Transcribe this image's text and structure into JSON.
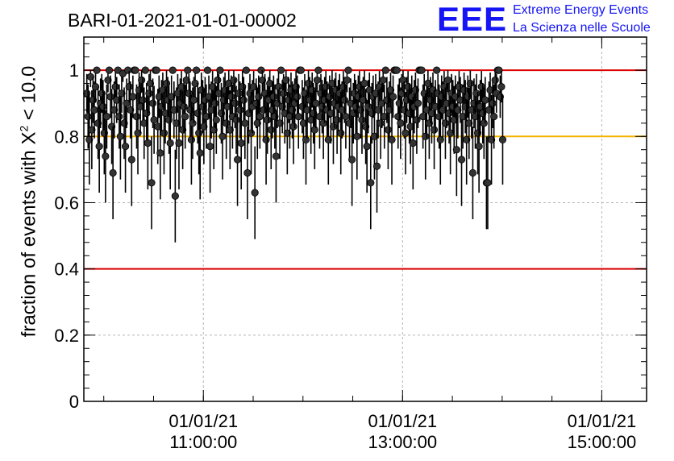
{
  "header": {
    "run_id": "BARI-01-2021-01-01-00002"
  },
  "logo": {
    "mark": "EEE",
    "line1": "Extreme Energy Events",
    "line2": "La Scienza nelle Scuole",
    "color": "#1515f5"
  },
  "chart_data": {
    "type": "scatter",
    "title": "BARI-01-2021-01-01-00002",
    "ylabel_prefix": "fraction of events with ",
    "ylabel_chi": "Χ",
    "ylabel_exp": "2",
    "ylabel_suffix": " < 10.0",
    "xlabel": "",
    "x_unit": "hours",
    "xlim": [
      9.8,
      15.45
    ],
    "ylim": [
      0,
      1.1
    ],
    "yticks": [
      0,
      0.2,
      0.4,
      0.6,
      0.8,
      1
    ],
    "ytick_labels": [
      "0",
      "0.2",
      "0.4",
      "0.6",
      "0.8",
      "1"
    ],
    "x_major_ticks": [
      {
        "x": 11,
        "date": "01/01/21",
        "time": "11:00:00"
      },
      {
        "x": 13,
        "date": "01/01/21",
        "time": "13:00:00"
      },
      {
        "x": 15,
        "date": "01/01/21",
        "time": "15:00:00"
      }
    ],
    "x_minor_step": 0.5,
    "grid": true,
    "reference_lines": [
      {
        "y": 1.0,
        "color": "#dd0000"
      },
      {
        "y": 0.8,
        "color": "#f2b400"
      },
      {
        "y": 0.4,
        "color": "#dd0000"
      }
    ],
    "series": [
      {
        "marker_color": "#333333",
        "x_start": 9.83,
        "x_step": 0.0125,
        "y": [
          0.93,
          0.86,
          0.79,
          0.98,
          0.82,
          0.91,
          0.88,
          0.95,
          1.0,
          0.84,
          0.77,
          0.9,
          0.93,
          0.89,
          0.81,
          0.74,
          0.86,
          0.97,
          1.0,
          0.92,
          0.83,
          0.69,
          0.88,
          0.95,
          0.91,
          1.0,
          0.86,
          0.8,
          0.93,
          0.99,
          0.84,
          0.77,
          0.9,
          1.0,
          0.95,
          0.88,
          0.73,
          0.92,
          1.0,
          1.0,
          0.86,
          0.81,
          0.94,
          0.89,
          0.97,
          0.91,
          0.84,
          1.0,
          0.87,
          0.78,
          0.93,
          0.96,
          0.66,
          0.9,
          0.85,
          1.0,
          1.0,
          0.83,
          0.92,
          0.75,
          0.89,
          0.94,
          0.81,
          0.87,
          0.96,
          0.91,
          0.85,
          0.78,
          0.92,
          1.0,
          0.88,
          0.62,
          0.84,
          0.93,
          0.78,
          0.9,
          0.95,
          0.82,
          0.89,
          0.86,
          0.97,
          1.0,
          0.93,
          0.88,
          0.79,
          0.84,
          0.91,
          0.96,
          1.0,
          0.87,
          0.81,
          0.75,
          0.94,
          0.89,
          0.83,
          0.91,
          0.86,
          1.0,
          0.92,
          0.77,
          0.88,
          0.95,
          0.82,
          0.9,
          0.85,
          0.97,
          0.93,
          1.0,
          0.87,
          0.8,
          0.91,
          0.94,
          0.84,
          0.89,
          0.96,
          0.82,
          0.92,
          0.86,
          0.97,
          0.9,
          0.85,
          0.73,
          0.93,
          0.88,
          0.78,
          0.95,
          0.91,
          0.84,
          1.0,
          0.69,
          0.87,
          0.93,
          0.81,
          0.89,
          0.95,
          0.63,
          0.9,
          0.84,
          0.92,
          0.86,
          1.0,
          0.97,
          0.88,
          0.93,
          0.79,
          0.85,
          0.91,
          0.96,
          0.82,
          0.88,
          0.92,
          0.86,
          0.74,
          0.9,
          0.95,
          0.84,
          1.0,
          0.89,
          0.93,
          0.87,
          0.97,
          0.81,
          0.91,
          0.86,
          0.94,
          0.88,
          0.83,
          0.9,
          0.95,
          0.92,
          0.86,
          1.0,
          1.0,
          0.89,
          0.84,
          0.93,
          0.79,
          0.88,
          0.96,
          0.91,
          0.85,
          0.94,
          0.87,
          0.82,
          0.9,
          0.97,
          1.0,
          0.86,
          0.93,
          0.89,
          0.84,
          0.91,
          0.95,
          0.88,
          0.79,
          0.92,
          0.87,
          0.96,
          0.83,
          0.9,
          0.94,
          0.85,
          0.89,
          0.93,
          0.81,
          0.88,
          0.95,
          0.91,
          0.86,
          0.97,
          1.0,
          0.84,
          0.9,
          0.73,
          0.87,
          0.93,
          0.89,
          0.8,
          0.92,
          0.95,
          0.88,
          0.85,
          0.91,
          0.96,
          0.83,
          0.77,
          0.89,
          0.94,
          0.66,
          0.87,
          0.92,
          0.8,
          0.93,
          0.71,
          0.88,
          0.95,
          0.84,
          0.9,
          0.97,
          0.86,
          1.0,
          0.91,
          0.82,
          0.88,
          0.94,
          0.79,
          0.92,
          1.0,
          1.0,
          1.0,
          0.86,
          0.9,
          0.84,
          0.93,
          0.97,
          0.88,
          0.81,
          0.91,
          0.95,
          0.87,
          0.83,
          0.92,
          0.78,
          0.89,
          0.94,
          0.85,
          0.9,
          1.0,
          1.0,
          1.0,
          0.86,
          0.93,
          0.8,
          0.88,
          0.96,
          0.84,
          0.91,
          0.87,
          0.94,
          0.82,
          0.89,
          1.0,
          0.93,
          0.86,
          0.79,
          0.92,
          0.88,
          0.95,
          0.84,
          0.9,
          0.97,
          0.87,
          0.81,
          0.93,
          0.89,
          0.85,
          0.92,
          0.76,
          0.88,
          0.95,
          0.91,
          0.73,
          0.86,
          0.94,
          0.89,
          0.79,
          0.92,
          0.84,
          0.96,
          0.88,
          0.69,
          0.9,
          0.86,
          0.93,
          0.81,
          0.77,
          0.89,
          0.95,
          0.87,
          0.84,
          0.91,
          0.66,
          0.66,
          0.88,
          0.94,
          0.79,
          0.9,
          0.86,
          0.97,
          0.93,
          1.0,
          1.0,
          0.92,
          0.95,
          0.79
        ]
      }
    ]
  }
}
